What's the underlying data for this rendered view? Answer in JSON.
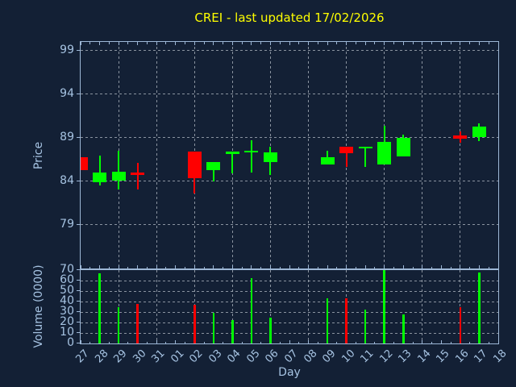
{
  "chart_data": {
    "type": "candlestick_with_volume",
    "title": "CREI - last updated 17/02/2026",
    "xlabel": "Day",
    "grid": "both-dashed",
    "price_axis": {
      "label": "Price",
      "ticks": [
        99,
        94,
        89,
        84,
        79
      ],
      "ylim": [
        74,
        100
      ]
    },
    "volume_axis": {
      "label": "Volume (0000)",
      "ticks": [
        70,
        60,
        50,
        40,
        30,
        20,
        10,
        0
      ],
      "ylim": [
        0,
        70
      ]
    },
    "x_categories": [
      "27",
      "28",
      "29",
      "30",
      "31",
      "01",
      "02",
      "03",
      "04",
      "05",
      "06",
      "07",
      "08",
      "09",
      "10",
      "11",
      "12",
      "13",
      "14",
      "15",
      "16",
      "17",
      "18"
    ],
    "grid_x_categories": [
      "29",
      "31",
      "02",
      "04",
      "06",
      "08",
      "10",
      "12",
      "14",
      "16",
      "18"
    ],
    "candles": [
      {
        "day": "27",
        "open": 86.8,
        "high": 86.8,
        "low": 85.3,
        "close": 85.3,
        "direction": "down",
        "volume": null
      },
      {
        "day": "28",
        "open": 83.9,
        "high": 87.0,
        "low": 83.5,
        "close": 85.0,
        "direction": "up",
        "volume": 67
      },
      {
        "day": "29",
        "open": 84.1,
        "high": 87.5,
        "low": 83.1,
        "close": 85.1,
        "direction": "up",
        "volume": 35
      },
      {
        "day": "30",
        "open": 85.0,
        "high": 86.1,
        "low": 83.1,
        "close": 84.7,
        "direction": "down",
        "volume": 38
      },
      {
        "day": "02",
        "open": 87.4,
        "high": 87.4,
        "low": 82.6,
        "close": 84.4,
        "direction": "down",
        "volume": 37
      },
      {
        "day": "03",
        "open": 85.3,
        "high": 86.2,
        "low": 84.0,
        "close": 86.2,
        "direction": "up",
        "volume": 29
      },
      {
        "day": "04",
        "open": 87.1,
        "high": 87.4,
        "low": 84.9,
        "close": 87.4,
        "direction": "up",
        "volume": 22
      },
      {
        "day": "05",
        "open": 87.3,
        "high": 88.7,
        "low": 85.0,
        "close": 87.5,
        "direction": "up",
        "volume": 62
      },
      {
        "day": "06",
        "open": 86.2,
        "high": 88.0,
        "low": 84.7,
        "close": 87.3,
        "direction": "up",
        "volume": 25
      },
      {
        "day": "09",
        "open": 85.9,
        "high": 87.5,
        "low": 85.9,
        "close": 86.8,
        "direction": "up",
        "volume": 43
      },
      {
        "day": "10",
        "open": 88.0,
        "high": 88.0,
        "low": 85.7,
        "close": 87.2,
        "direction": "down",
        "volume": 43
      },
      {
        "day": "11",
        "open": 87.8,
        "high": 88.0,
        "low": 85.7,
        "close": 88.0,
        "direction": "up",
        "volume": 32
      },
      {
        "day": "12",
        "open": 85.9,
        "high": 90.4,
        "low": 85.9,
        "close": 88.5,
        "direction": "up",
        "volume": 70
      },
      {
        "day": "13",
        "open": 86.9,
        "high": 89.4,
        "low": 86.9,
        "close": 89.0,
        "direction": "up",
        "volume": 28
      },
      {
        "day": "16",
        "open": 89.3,
        "high": 89.7,
        "low": 88.4,
        "close": 88.9,
        "direction": "down",
        "volume": 35
      },
      {
        "day": "17",
        "open": 89.1,
        "high": 90.7,
        "low": 88.6,
        "close": 90.3,
        "direction": "up",
        "volume": 68
      }
    ],
    "colors": {
      "background": "#132035",
      "up": "#00ff00",
      "down": "#ff0000",
      "title": "#ffff00",
      "axis": "#9db7d6",
      "text": "#a6c3e2",
      "grid": "#a8b0ba"
    }
  }
}
